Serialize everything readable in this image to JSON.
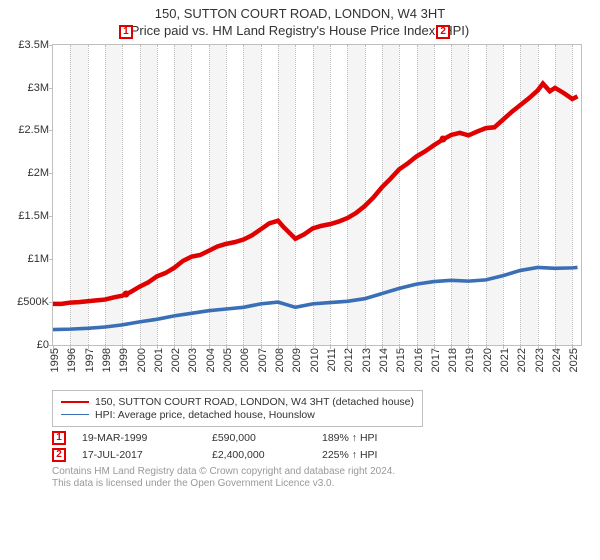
{
  "title_main": "150, SUTTON COURT ROAD, LONDON, W4 3HT",
  "title_sub": "Price paid vs. HM Land Registry's House Price Index (HPI)",
  "chart": {
    "type": "line",
    "background_color": "#ffffff",
    "border_color": "#bfbfbf",
    "band_color": "#f5f5f5",
    "x_min": 1995,
    "x_max": 2025.5,
    "x_ticks": [
      1995,
      1996,
      1997,
      1998,
      1999,
      2000,
      2001,
      2002,
      2003,
      2004,
      2005,
      2006,
      2007,
      2008,
      2009,
      2010,
      2011,
      2012,
      2013,
      2014,
      2015,
      2016,
      2017,
      2018,
      2019,
      2020,
      2021,
      2022,
      2023,
      2024,
      2025
    ],
    "y_min": 0,
    "y_max": 3500000,
    "y_ticks": [
      {
        "v": 0,
        "label": "£0"
      },
      {
        "v": 500000,
        "label": "£500K"
      },
      {
        "v": 1000000,
        "label": "£1M"
      },
      {
        "v": 1500000,
        "label": "£1.5M"
      },
      {
        "v": 2000000,
        "label": "£2M"
      },
      {
        "v": 2500000,
        "label": "£2.5M"
      },
      {
        "v": 3000000,
        "label": "£3M"
      },
      {
        "v": 3500000,
        "label": "£3.5M"
      }
    ],
    "series": [
      {
        "name": "price_paid",
        "color": "#e00000",
        "width": 1.5,
        "points": [
          [
            1995.0,
            480000
          ],
          [
            1995.5,
            480000
          ],
          [
            1996.0,
            495000
          ],
          [
            1996.5,
            500000
          ],
          [
            1997.0,
            510000
          ],
          [
            1997.5,
            520000
          ],
          [
            1998.0,
            530000
          ],
          [
            1998.5,
            555000
          ],
          [
            1999.0,
            575000
          ],
          [
            1999.2,
            590000
          ],
          [
            1999.5,
            620000
          ],
          [
            2000.0,
            680000
          ],
          [
            2000.5,
            730000
          ],
          [
            2001.0,
            800000
          ],
          [
            2001.5,
            840000
          ],
          [
            2002.0,
            900000
          ],
          [
            2002.5,
            980000
          ],
          [
            2003.0,
            1030000
          ],
          [
            2003.5,
            1050000
          ],
          [
            2004.0,
            1100000
          ],
          [
            2004.5,
            1150000
          ],
          [
            2005.0,
            1180000
          ],
          [
            2005.5,
            1200000
          ],
          [
            2006.0,
            1230000
          ],
          [
            2006.5,
            1280000
          ],
          [
            2007.0,
            1350000
          ],
          [
            2007.5,
            1420000
          ],
          [
            2008.0,
            1450000
          ],
          [
            2008.3,
            1380000
          ],
          [
            2008.7,
            1300000
          ],
          [
            2009.0,
            1240000
          ],
          [
            2009.5,
            1290000
          ],
          [
            2010.0,
            1360000
          ],
          [
            2010.5,
            1390000
          ],
          [
            2011.0,
            1410000
          ],
          [
            2011.5,
            1440000
          ],
          [
            2012.0,
            1480000
          ],
          [
            2012.5,
            1540000
          ],
          [
            2013.0,
            1620000
          ],
          [
            2013.5,
            1720000
          ],
          [
            2014.0,
            1840000
          ],
          [
            2014.5,
            1940000
          ],
          [
            2015.0,
            2050000
          ],
          [
            2015.5,
            2120000
          ],
          [
            2016.0,
            2200000
          ],
          [
            2016.5,
            2260000
          ],
          [
            2017.0,
            2330000
          ],
          [
            2017.54,
            2400000
          ],
          [
            2018.0,
            2450000
          ],
          [
            2018.5,
            2475000
          ],
          [
            2019.0,
            2445000
          ],
          [
            2019.5,
            2490000
          ],
          [
            2020.0,
            2530000
          ],
          [
            2020.5,
            2540000
          ],
          [
            2021.0,
            2630000
          ],
          [
            2021.5,
            2720000
          ],
          [
            2022.0,
            2800000
          ],
          [
            2022.5,
            2880000
          ],
          [
            2023.0,
            2970000
          ],
          [
            2023.3,
            3050000
          ],
          [
            2023.7,
            2960000
          ],
          [
            2024.0,
            3000000
          ],
          [
            2024.5,
            2940000
          ],
          [
            2025.0,
            2870000
          ],
          [
            2025.3,
            2900000
          ]
        ]
      },
      {
        "name": "hpi",
        "color": "#3a6fb7",
        "width": 1.2,
        "points": [
          [
            1995.0,
            180000
          ],
          [
            1996.0,
            185000
          ],
          [
            1997.0,
            195000
          ],
          [
            1998.0,
            210000
          ],
          [
            1999.0,
            235000
          ],
          [
            2000.0,
            270000
          ],
          [
            2001.0,
            300000
          ],
          [
            2002.0,
            340000
          ],
          [
            2003.0,
            370000
          ],
          [
            2004.0,
            400000
          ],
          [
            2005.0,
            420000
          ],
          [
            2006.0,
            440000
          ],
          [
            2007.0,
            480000
          ],
          [
            2008.0,
            500000
          ],
          [
            2008.5,
            470000
          ],
          [
            2009.0,
            440000
          ],
          [
            2010.0,
            480000
          ],
          [
            2011.0,
            495000
          ],
          [
            2012.0,
            510000
          ],
          [
            2013.0,
            540000
          ],
          [
            2014.0,
            600000
          ],
          [
            2015.0,
            660000
          ],
          [
            2016.0,
            710000
          ],
          [
            2017.0,
            740000
          ],
          [
            2018.0,
            755000
          ],
          [
            2019.0,
            745000
          ],
          [
            2020.0,
            760000
          ],
          [
            2021.0,
            810000
          ],
          [
            2022.0,
            870000
          ],
          [
            2023.0,
            905000
          ],
          [
            2024.0,
            895000
          ],
          [
            2025.0,
            900000
          ],
          [
            2025.3,
            905000
          ]
        ]
      }
    ],
    "sale_markers": [
      {
        "n": "1",
        "x": 1999.21,
        "y": 590000
      },
      {
        "n": "2",
        "x": 2017.54,
        "y": 2400000
      }
    ]
  },
  "legend": [
    {
      "color": "#e00000",
      "width": 2,
      "label": "150, SUTTON COURT ROAD, LONDON, W4 3HT (detached house)"
    },
    {
      "color": "#3a6fb7",
      "width": 1.4,
      "label": "HPI: Average price, detached house, Hounslow"
    }
  ],
  "transactions": [
    {
      "n": "1",
      "date": "19-MAR-1999",
      "price": "£590,000",
      "hpi": "189% ↑ HPI"
    },
    {
      "n": "2",
      "date": "17-JUL-2017",
      "price": "£2,400,000",
      "hpi": "225% ↑ HPI"
    }
  ],
  "footer_line1": "Contains HM Land Registry data © Crown copyright and database right 2024.",
  "footer_line2": "This data is licensed under the Open Government Licence v3.0."
}
